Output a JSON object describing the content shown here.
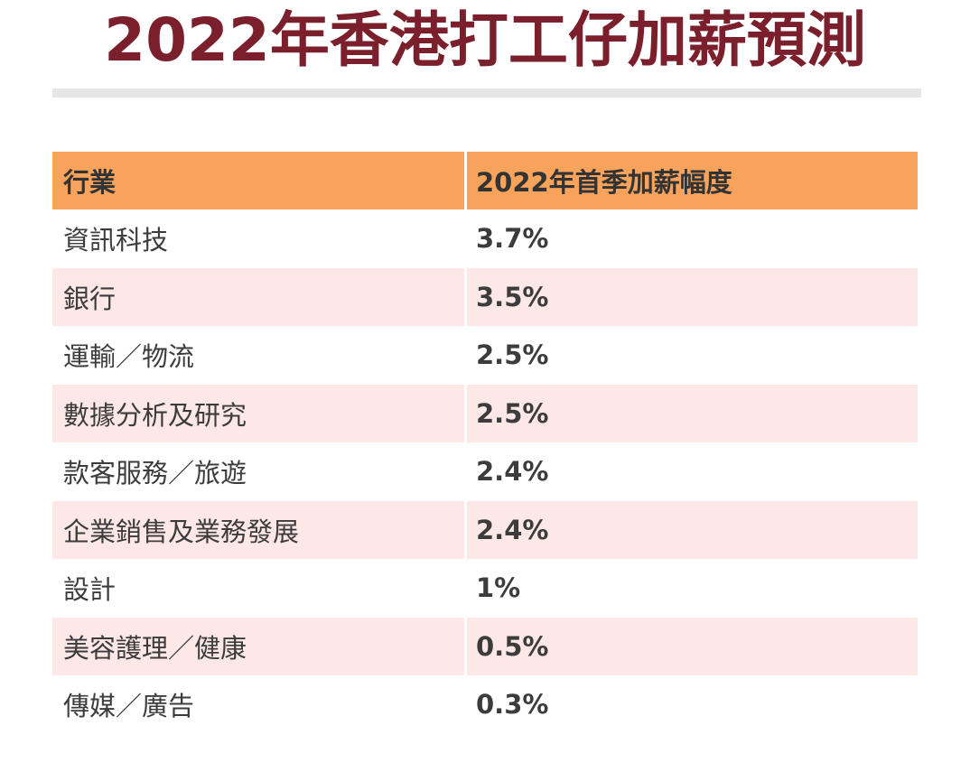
{
  "title": "2022年香港打工仔加薪預測",
  "table": {
    "headers": [
      "行業",
      "2022年首季加薪幅度"
    ],
    "rows": [
      {
        "industry": "資訊科技",
        "raise": "3.7%"
      },
      {
        "industry": "銀行",
        "raise": "3.5%"
      },
      {
        "industry": "運輸／物流",
        "raise": "2.5%"
      },
      {
        "industry": "數據分析及研究",
        "raise": "2.5%"
      },
      {
        "industry": "款客服務／旅遊",
        "raise": "2.4%"
      },
      {
        "industry": "企業銷售及業務發展",
        "raise": "2.4%"
      },
      {
        "industry": "設計",
        "raise": "1%"
      },
      {
        "industry": "美容護理／健康",
        "raise": "0.5%"
      },
      {
        "industry": "傳媒／廣告",
        "raise": "0.3%"
      }
    ]
  },
  "colors": {
    "title": "#7a1f2b",
    "header_bg": "#f7a35c",
    "shade_row_bg": "#fde7e7",
    "divider": "#e6e6e6"
  }
}
